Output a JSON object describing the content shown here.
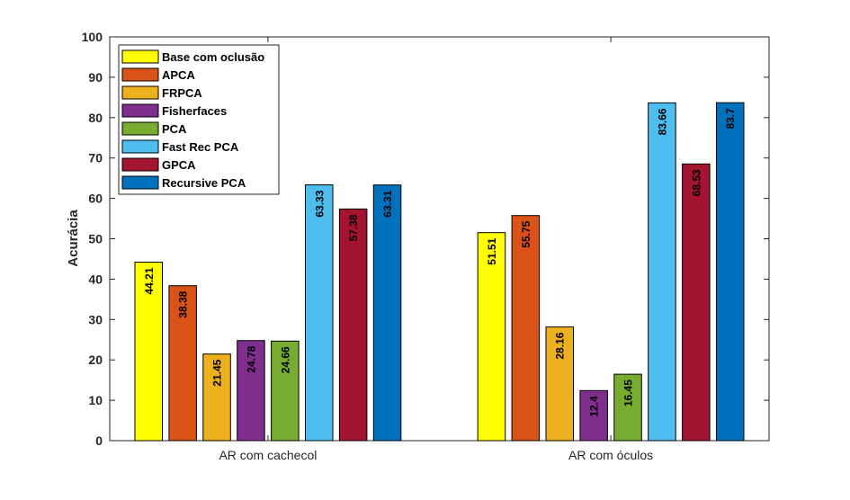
{
  "chart_data": {
    "type": "bar",
    "title": "",
    "xlabel": "",
    "ylabel": "Acurácia",
    "ylim": [
      0,
      100
    ],
    "yticks": [
      0,
      10,
      20,
      30,
      40,
      50,
      60,
      70,
      80,
      90,
      100
    ],
    "grid": false,
    "legend_position": "top-left",
    "categories": [
      "AR com cachecol",
      "AR com óculos"
    ],
    "series": [
      {
        "name": "Base com oclusão",
        "color": "#ffff00",
        "values": [
          44.21,
          51.51
        ],
        "labels": [
          "44.21",
          "51.51"
        ]
      },
      {
        "name": "APCA",
        "color": "#d95319",
        "values": [
          38.38,
          55.75
        ],
        "labels": [
          "38.38",
          "55.75"
        ]
      },
      {
        "name": "FRPCA",
        "color": "#edb120",
        "values": [
          21.45,
          28.16
        ],
        "labels": [
          "21.45",
          "28.16"
        ]
      },
      {
        "name": "Fisherfaces",
        "color": "#7e2f8e",
        "values": [
          24.78,
          12.4
        ],
        "labels": [
          "24.78",
          "12.4"
        ]
      },
      {
        "name": "PCA",
        "color": "#77ac30",
        "values": [
          24.66,
          16.45
        ],
        "labels": [
          "24.66",
          "16.45"
        ]
      },
      {
        "name": "Fast Rec PCA",
        "color": "#4dbeee",
        "values": [
          63.33,
          83.66
        ],
        "labels": [
          "63.33",
          "83.66"
        ]
      },
      {
        "name": "GPCA",
        "color": "#a2142f",
        "values": [
          57.38,
          68.53
        ],
        "labels": [
          "57.38",
          "68.53"
        ]
      },
      {
        "name": "Recursive PCA",
        "color": "#0072bd",
        "values": [
          63.31,
          83.7
        ],
        "labels": [
          "63.31",
          "83.7"
        ]
      }
    ]
  }
}
